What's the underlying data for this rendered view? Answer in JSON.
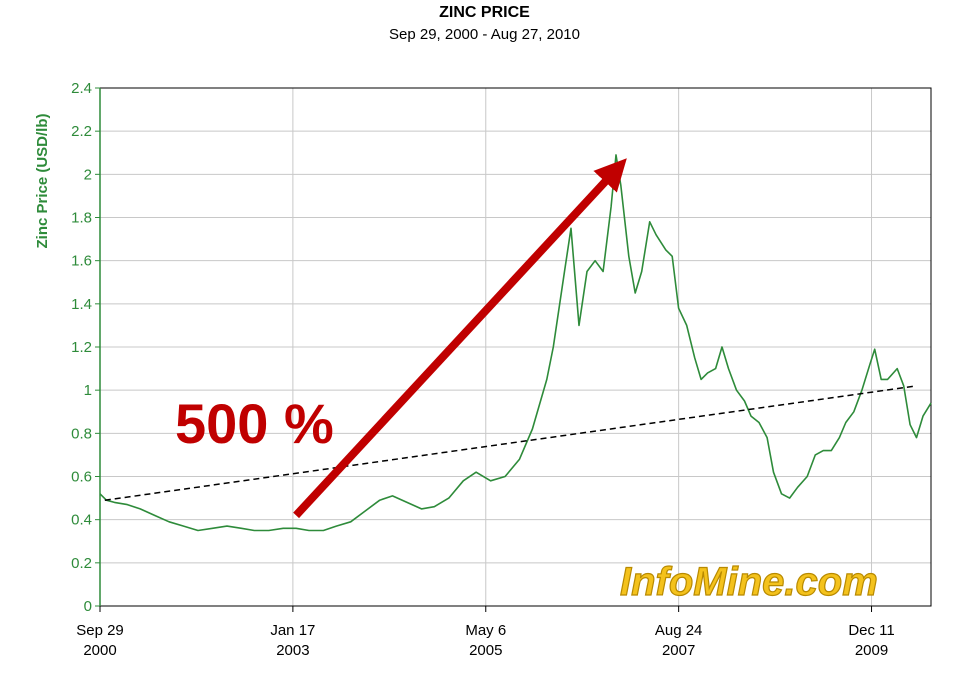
{
  "chart_data": {
    "type": "line",
    "title": "ZINC PRICE",
    "subtitle": "Sep 29, 2000 - Aug 27, 2010",
    "ylabel": "Zinc Price (USD/lb)",
    "xlabel": "",
    "ylim": [
      0,
      2.4
    ],
    "y_ticks": [
      "0",
      "0.2",
      "0.4",
      "0.6",
      "0.8",
      "1",
      "1.2",
      "1.4",
      "1.6",
      "1.8",
      "2",
      "2.2",
      "2.4"
    ],
    "x_ticks": [
      {
        "line1": "Sep 29",
        "line2": "2000",
        "date": "2000-09-29"
      },
      {
        "line1": "Jan 17",
        "line2": "2003",
        "date": "2003-01-17"
      },
      {
        "line1": "May 6",
        "line2": "2005",
        "date": "2005-05-06"
      },
      {
        "line1": "Aug 24",
        "line2": "2007",
        "date": "2007-08-24"
      },
      {
        "line1": "Dec 11",
        "line2": "2009",
        "date": "2009-12-11"
      }
    ],
    "xlim": [
      "2000-09-29",
      "2010-08-27"
    ],
    "grid": true,
    "series": [
      {
        "color": "#2e8b3a",
        "points": [
          [
            "2000-09-29",
            0.52
          ],
          [
            "2000-10-27",
            0.49
          ],
          [
            "2000-12-01",
            0.48
          ],
          [
            "2001-01-26",
            0.47
          ],
          [
            "2001-03-23",
            0.45
          ],
          [
            "2001-05-25",
            0.42
          ],
          [
            "2001-07-27",
            0.39
          ],
          [
            "2001-09-28",
            0.37
          ],
          [
            "2001-11-30",
            0.35
          ],
          [
            "2002-02-01",
            0.36
          ],
          [
            "2002-04-05",
            0.37
          ],
          [
            "2002-06-07",
            0.36
          ],
          [
            "2002-08-02",
            0.35
          ],
          [
            "2002-10-04",
            0.35
          ],
          [
            "2002-12-06",
            0.36
          ],
          [
            "2003-01-31",
            0.36
          ],
          [
            "2003-03-28",
            0.35
          ],
          [
            "2003-05-30",
            0.35
          ],
          [
            "2003-07-25",
            0.37
          ],
          [
            "2003-09-26",
            0.39
          ],
          [
            "2003-11-28",
            0.44
          ],
          [
            "2004-01-30",
            0.49
          ],
          [
            "2004-03-26",
            0.51
          ],
          [
            "2004-05-28",
            0.48
          ],
          [
            "2004-07-30",
            0.45
          ],
          [
            "2004-09-24",
            0.46
          ],
          [
            "2004-11-26",
            0.5
          ],
          [
            "2005-01-28",
            0.58
          ],
          [
            "2005-03-25",
            0.62
          ],
          [
            "2005-05-27",
            0.58
          ],
          [
            "2005-07-29",
            0.6
          ],
          [
            "2005-09-30",
            0.68
          ],
          [
            "2005-11-25",
            0.82
          ],
          [
            "2006-01-27",
            1.05
          ],
          [
            "2006-02-24",
            1.2
          ],
          [
            "2006-04-14",
            1.55
          ],
          [
            "2006-05-12",
            1.75
          ],
          [
            "2006-06-16",
            1.3
          ],
          [
            "2006-07-21",
            1.55
          ],
          [
            "2006-08-25",
            1.6
          ],
          [
            "2006-09-29",
            1.55
          ],
          [
            "2006-11-03",
            1.85
          ],
          [
            "2006-11-24",
            2.09
          ],
          [
            "2006-12-15",
            1.95
          ],
          [
            "2007-01-19",
            1.62
          ],
          [
            "2007-02-16",
            1.45
          ],
          [
            "2007-03-16",
            1.55
          ],
          [
            "2007-04-20",
            1.78
          ],
          [
            "2007-05-18",
            1.72
          ],
          [
            "2007-06-29",
            1.65
          ],
          [
            "2007-07-27",
            1.62
          ],
          [
            "2007-08-24",
            1.38
          ],
          [
            "2007-09-28",
            1.3
          ],
          [
            "2007-11-02",
            1.15
          ],
          [
            "2007-11-30",
            1.05
          ],
          [
            "2007-12-28",
            1.08
          ],
          [
            "2008-02-01",
            1.1
          ],
          [
            "2008-02-29",
            1.2
          ],
          [
            "2008-03-28",
            1.1
          ],
          [
            "2008-05-02",
            1.0
          ],
          [
            "2008-06-06",
            0.95
          ],
          [
            "2008-07-04",
            0.88
          ],
          [
            "2008-08-08",
            0.85
          ],
          [
            "2008-09-12",
            0.78
          ],
          [
            "2008-10-10",
            0.62
          ],
          [
            "2008-11-14",
            0.52
          ],
          [
            "2008-12-19",
            0.5
          ],
          [
            "2009-01-23",
            0.55
          ],
          [
            "2009-03-06",
            0.6
          ],
          [
            "2009-04-10",
            0.7
          ],
          [
            "2009-05-15",
            0.72
          ],
          [
            "2009-06-19",
            0.72
          ],
          [
            "2009-07-24",
            0.78
          ],
          [
            "2009-08-21",
            0.85
          ],
          [
            "2009-09-25",
            0.9
          ],
          [
            "2009-10-30",
            1.0
          ],
          [
            "2009-12-04",
            1.12
          ],
          [
            "2009-12-25",
            1.19
          ],
          [
            "2010-01-22",
            1.05
          ],
          [
            "2010-02-19",
            1.05
          ],
          [
            "2010-04-02",
            1.1
          ],
          [
            "2010-04-30",
            1.02
          ],
          [
            "2010-05-28",
            0.84
          ],
          [
            "2010-06-25",
            0.78
          ],
          [
            "2010-07-23",
            0.88
          ],
          [
            "2010-08-27",
            0.94
          ]
        ]
      }
    ],
    "trendline": {
      "from": [
        "2000-10-20",
        0.49
      ],
      "to": [
        "2010-06-25",
        1.02
      ],
      "color": "#000000",
      "style": "dashed"
    },
    "annotation": {
      "text": "500 %",
      "color": "#c00000",
      "arrow_from": [
        "2003-01-31",
        0.42
      ],
      "arrow_to": [
        "2006-11-24",
        2.02
      ]
    },
    "watermark": "InfoMine.com"
  }
}
